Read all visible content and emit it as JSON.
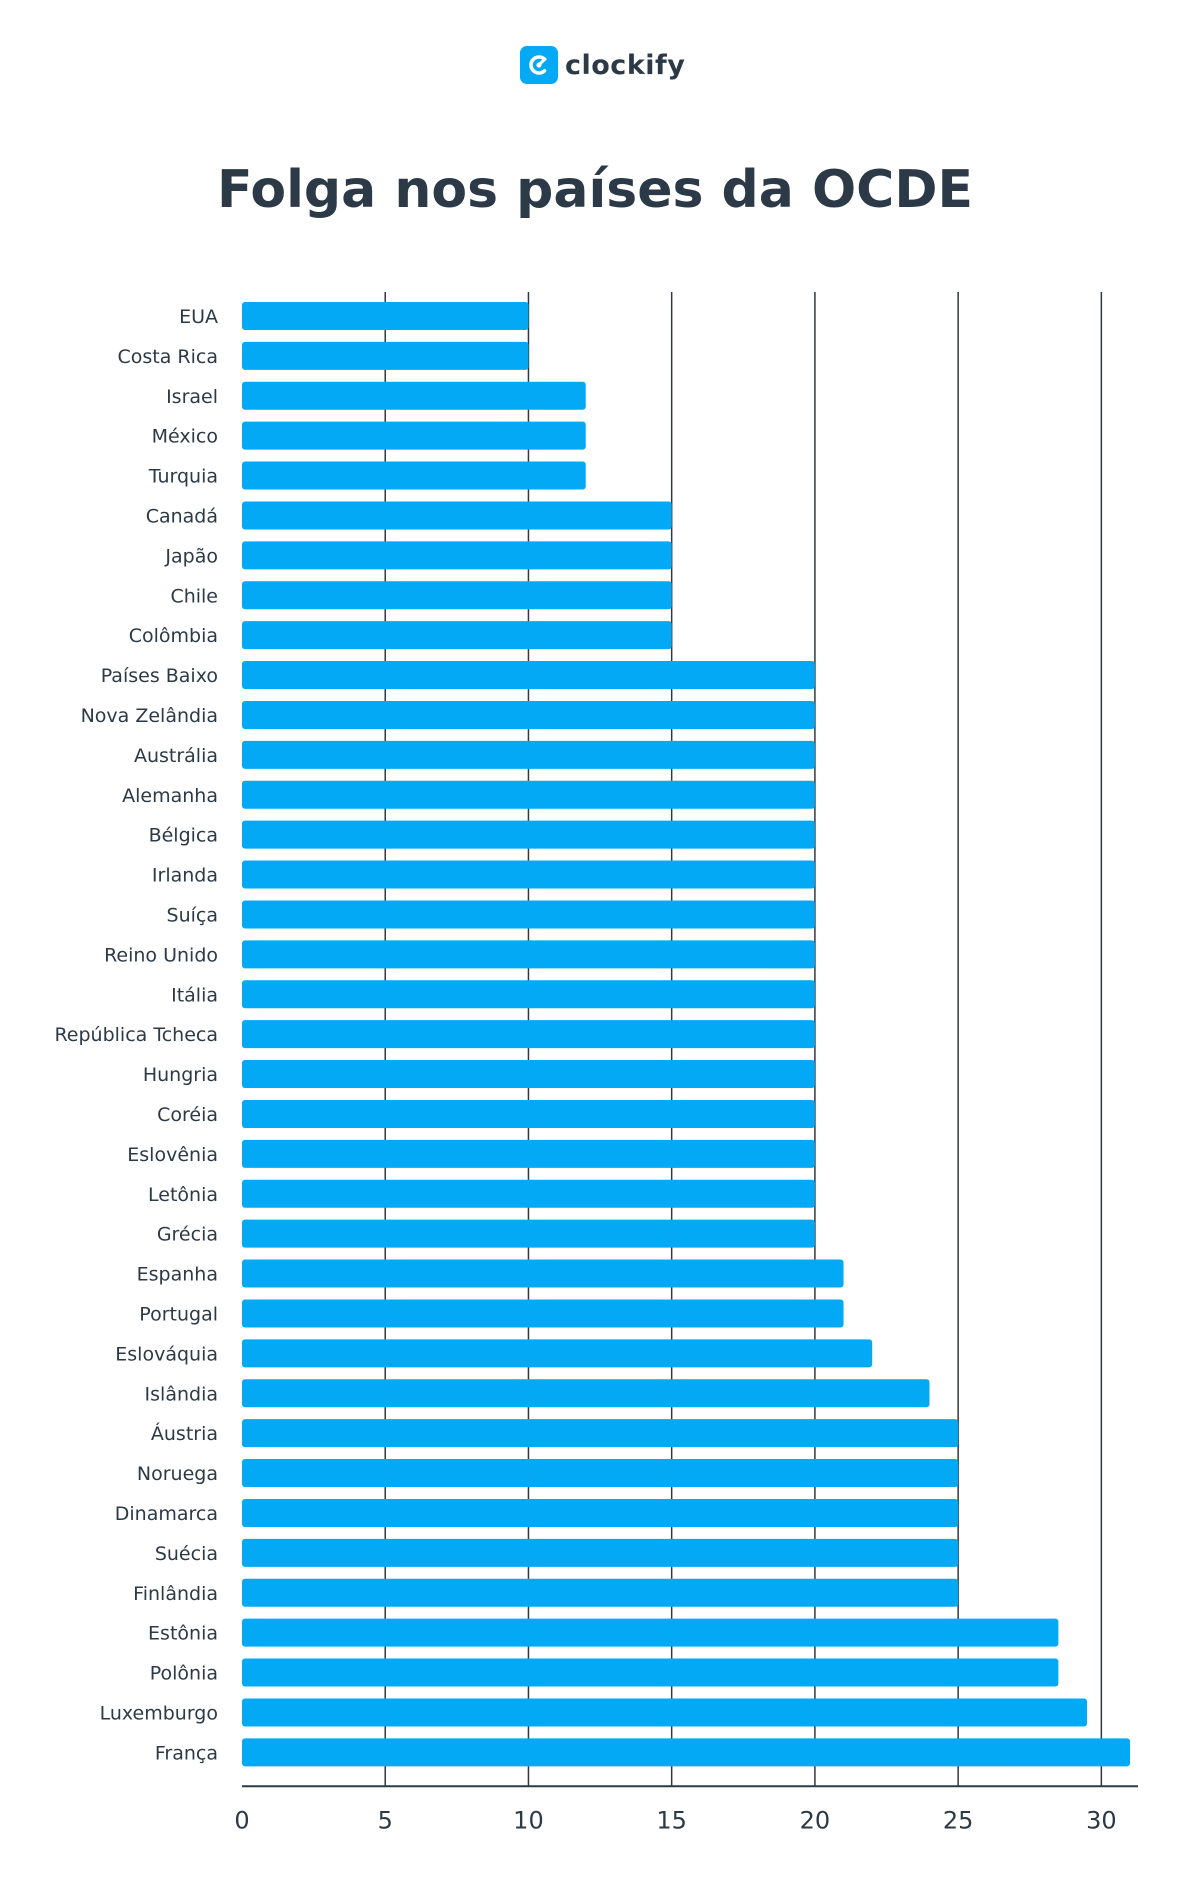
{
  "brand": {
    "name": "clockify",
    "icon": "clockify-logo-icon",
    "color": "#03a9f4"
  },
  "chart_data": {
    "type": "bar",
    "orientation": "horizontal",
    "title": "Folga nos países da OCDE",
    "xlabel": "",
    "ylabel": "",
    "xlim": [
      0,
      31
    ],
    "x_ticks": [
      0,
      5,
      10,
      15,
      20,
      25,
      30
    ],
    "grid": "vertical",
    "bar_color": "#03a9f4",
    "categories": [
      "EUA",
      "Costa Rica",
      "Israel",
      "México",
      "Turquia",
      "Canadá",
      "Japão",
      "Chile",
      "Colômbia",
      "Países Baixo",
      "Nova Zelândia",
      "Austrália",
      "Alemanha",
      "Bélgica",
      "Irlanda",
      "Suíça",
      "Reino Unido",
      "Itália",
      "República Tcheca",
      "Hungria",
      "Coréia",
      "Eslovênia",
      "Letônia",
      "Grécia",
      "Espanha",
      "Portugal",
      "Eslováquia",
      "Islândia",
      "Áustria",
      "Noruega",
      "Dinamarca",
      "Suécia",
      "Finlândia",
      "Estônia",
      "Polônia",
      "Luxemburgo",
      "França"
    ],
    "values": [
      10,
      10,
      12,
      12,
      12,
      15,
      15,
      15,
      15,
      20,
      20,
      20,
      20,
      20,
      20,
      20,
      20,
      20,
      20,
      20,
      20,
      20,
      20,
      20,
      21,
      21,
      22,
      24,
      25,
      25,
      25,
      25,
      25,
      28.5,
      28.5,
      29.5,
      31
    ]
  }
}
